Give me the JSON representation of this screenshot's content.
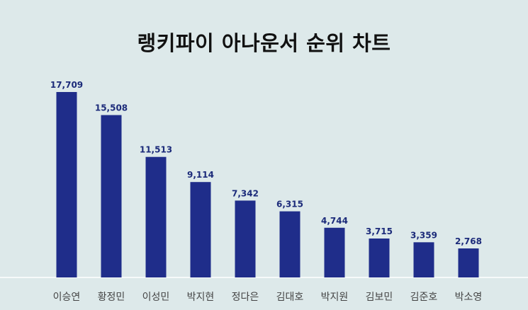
{
  "chart_data": {
    "type": "bar",
    "title": "랭키파이 아나운서 순위 차트",
    "categories": [
      "이승연",
      "황정민",
      "이성민",
      "박지현",
      "정다은",
      "김대호",
      "박지원",
      "김보민",
      "김준호",
      "박소영"
    ],
    "values": [
      17709,
      15508,
      11513,
      9114,
      7342,
      6315,
      4744,
      3715,
      3359,
      2768
    ],
    "value_labels": [
      "17,709",
      "15,508",
      "11,513",
      "9,114",
      "7,342",
      "6,315",
      "4,744",
      "3,715",
      "3,359",
      "2,768"
    ],
    "xlabel": "",
    "ylabel": "",
    "ylim": [
      0,
      17709
    ],
    "grid": false,
    "legend": "none",
    "colors": {
      "bar": "#1f2d8a",
      "value_label": "#1c2b7a",
      "tick_label": "#444444",
      "baseline": "#ffffff",
      "background": "#dde9ea"
    }
  }
}
